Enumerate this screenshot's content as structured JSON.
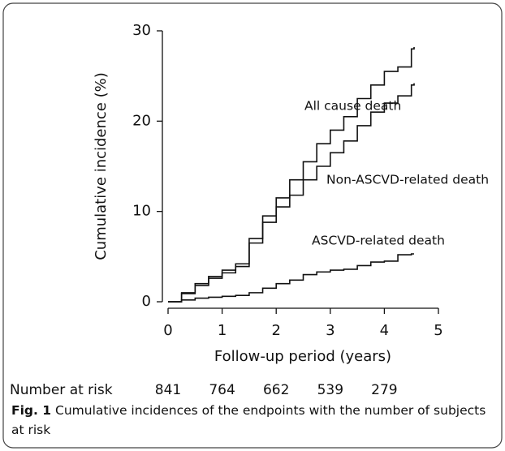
{
  "chart_data": {
    "type": "line",
    "step": true,
    "y_label": "Cumulative incidence (%)",
    "x_label": "Follow-up period (years)",
    "x": [
      0,
      0.25,
      0.5,
      0.75,
      1,
      1.25,
      1.5,
      1.75,
      2,
      2.25,
      2.5,
      2.75,
      3,
      3.25,
      3.5,
      3.75,
      4,
      4.25,
      4.5,
      4.55
    ],
    "series": [
      {
        "name": "All cause death",
        "color": "#111111",
        "values": [
          0,
          1,
          2,
          2.8,
          3.5,
          4.2,
          7,
          9.5,
          11.5,
          13.5,
          15.5,
          17.5,
          19,
          20.5,
          22.5,
          24,
          25.5,
          26,
          28,
          28.2
        ]
      },
      {
        "name": "Non-ASCVD-related death",
        "color": "#111111",
        "values": [
          0,
          0.9,
          1.8,
          2.6,
          3.2,
          3.9,
          6.5,
          8.8,
          10.5,
          11.8,
          13.5,
          15,
          16.5,
          17.8,
          19.5,
          21,
          22,
          22.8,
          24,
          24.2
        ]
      },
      {
        "name": "ASCVD-related death",
        "color": "#111111",
        "values": [
          0,
          0.2,
          0.4,
          0.5,
          0.6,
          0.7,
          1,
          1.5,
          2,
          2.4,
          3,
          3.3,
          3.5,
          3.6,
          4,
          4.4,
          4.5,
          5.2,
          5.3,
          5.3
        ]
      }
    ],
    "xlim": [
      0,
      5
    ],
    "xticks": [
      0,
      1,
      2,
      3,
      4,
      5
    ],
    "ylim": [
      0,
      30
    ],
    "yticks": [
      0,
      10,
      20,
      30
    ],
    "risk_table": {
      "label": "Number at risk",
      "x": [
        0,
        1,
        2,
        3,
        4
      ],
      "values": [
        841,
        764,
        662,
        539,
        279
      ]
    },
    "caption_label": "Fig. 1",
    "caption": "Cumulative incidences of the endpoints with the number of subjects at risk"
  }
}
